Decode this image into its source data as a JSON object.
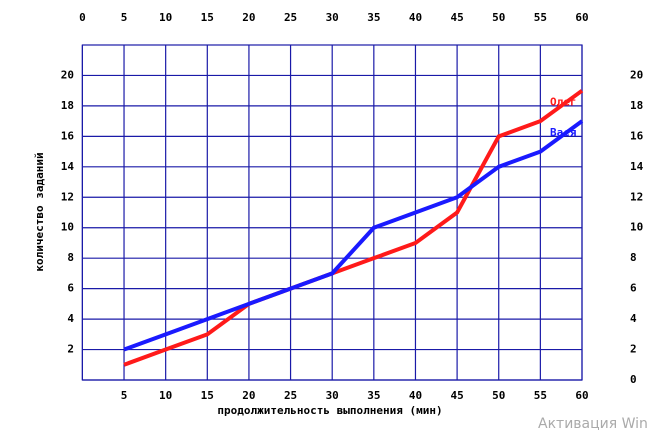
{
  "chart_data": {
    "type": "line",
    "x_label": "продолжительность выполнения (мин)",
    "y_label": "количество заданий",
    "x": [
      5,
      10,
      15,
      20,
      25,
      30,
      35,
      40,
      45,
      50,
      55,
      60
    ],
    "series": [
      {
        "name": "Олег",
        "color": "#ff1a1a",
        "values": [
          1,
          2,
          3,
          5,
          6,
          7,
          8,
          9,
          11,
          16,
          17,
          19
        ]
      },
      {
        "name": "Вася",
        "color": "#1a1aff",
        "values": [
          2,
          3,
          4,
          5,
          6,
          7,
          10,
          11,
          12,
          14,
          15,
          17
        ]
      }
    ],
    "xlim": [
      0,
      60
    ],
    "ylim": [
      0,
      22
    ],
    "xticks_top": [
      0,
      5,
      10,
      15,
      20,
      25,
      30,
      35,
      40,
      45,
      50,
      55,
      60
    ],
    "xticks": [
      5,
      10,
      15,
      20,
      25,
      30,
      35,
      40,
      45,
      50,
      55,
      60
    ],
    "yticks": [
      2,
      4,
      6,
      8,
      10,
      12,
      14,
      16,
      18,
      20
    ],
    "y2ticks": [
      0,
      2,
      4,
      6,
      8,
      10,
      12,
      14,
      16,
      18,
      20
    ],
    "grid": true
  },
  "watermark": "Активация Win"
}
